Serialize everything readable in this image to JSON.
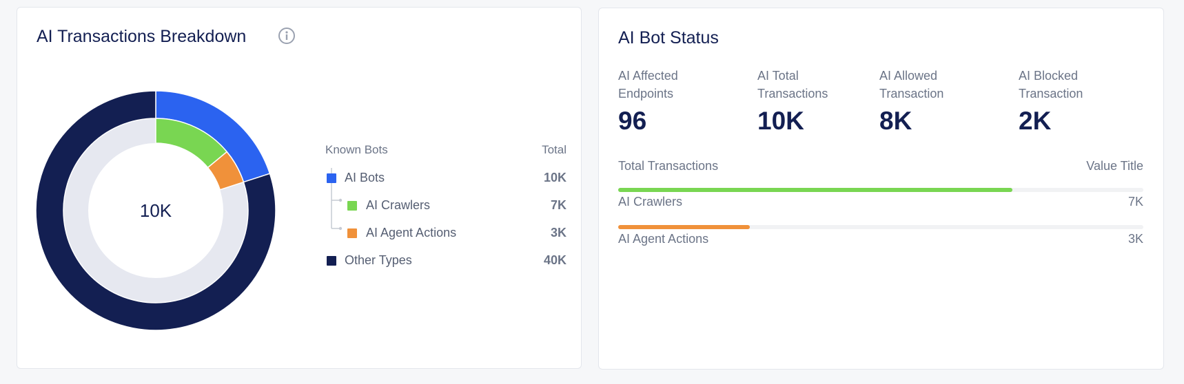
{
  "breakdown": {
    "title": "AI Transactions Breakdown",
    "info_icon": "info-circle-icon",
    "center_label": "10K",
    "legend_header": {
      "name": "Known Bots",
      "total": "Total"
    },
    "legend": [
      {
        "label": "AI Bots",
        "value": "10K",
        "color": "#2b63f0",
        "child": false
      },
      {
        "label": "AI Crawlers",
        "value": "7K",
        "color": "#79d652",
        "child": true
      },
      {
        "label": "AI Agent Actions",
        "value": "3K",
        "color": "#f0913a",
        "child": true
      },
      {
        "label": "Other Types",
        "value": "40K",
        "color": "#131f52",
        "child": false
      }
    ],
    "colors": {
      "ai_bots": "#2b63f0",
      "ai_crawlers": "#79d652",
      "ai_agent_actions": "#f0913a",
      "other_types": "#131f52",
      "inner_track": "#e6e8f0"
    }
  },
  "chart_data": {
    "type": "pie",
    "title": "AI Transactions Breakdown",
    "rings": [
      {
        "ring": "outer",
        "slices": [
          {
            "label": "AI Bots",
            "value": 10
          },
          {
            "label": "Other Types",
            "value": 40
          }
        ]
      },
      {
        "ring": "inner",
        "total": 50,
        "slices": [
          {
            "label": "AI Crawlers",
            "value": 7
          },
          {
            "label": "AI Agent Actions",
            "value": 3
          }
        ]
      }
    ],
    "center_label": "10K",
    "unit": "K transactions"
  },
  "status": {
    "title": "AI Bot Status",
    "metrics": [
      {
        "label": "AI Affected Endpoints",
        "value": "96"
      },
      {
        "label": "AI Total Transactions",
        "value": "10K"
      },
      {
        "label": "AI Allowed Transaction",
        "value": "8K"
      },
      {
        "label": "AI Blocked Transaction",
        "value": "2K"
      }
    ],
    "totals_header": {
      "left": "Total Transactions",
      "right": "Value Title"
    },
    "bars": [
      {
        "label": "AI Crawlers",
        "value": "7K",
        "fraction": 0.75,
        "color": "#79d652"
      },
      {
        "label": "AI Agent Actions",
        "value": "3K",
        "fraction": 0.25,
        "color": "#f0913a"
      }
    ]
  }
}
